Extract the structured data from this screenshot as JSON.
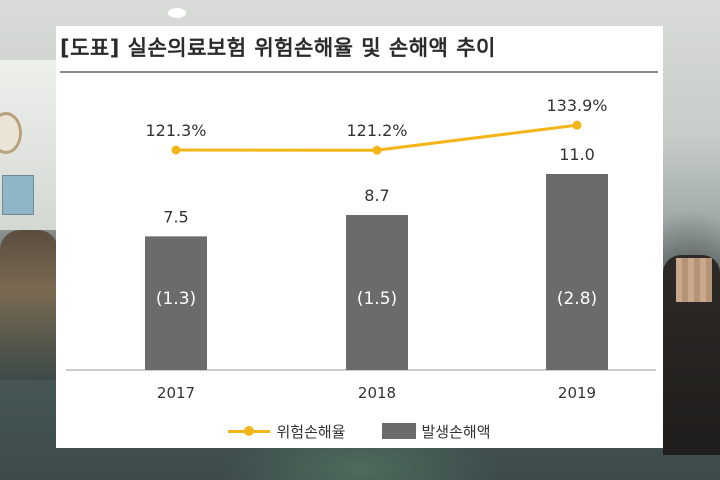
{
  "title": "[도표] 실손의료보험 위험손해율 및 손해액 추이",
  "colors": {
    "line": "#f2b619",
    "bar": "#6b6b6b",
    "axis": "#bcbcbc"
  },
  "legend": {
    "line_label": "위험손해율",
    "bar_label": "발생손해액"
  },
  "chart_data": {
    "type": "bar",
    "categories": [
      "2017",
      "2018",
      "2019"
    ],
    "series": [
      {
        "name": "발생손해액",
        "type": "bar",
        "values": [
          7.5,
          8.7,
          11.0
        ],
        "labels": [
          "7.5",
          "8.7",
          "11.0"
        ],
        "inner_labels": [
          "(1.3)",
          "(1.5)",
          "(2.8)"
        ]
      },
      {
        "name": "위험손해율",
        "type": "line",
        "values": [
          121.3,
          121.2,
          133.9
        ],
        "labels": [
          "121.3%",
          "121.2%",
          "133.9%"
        ]
      }
    ],
    "legend_position": "bottom",
    "grid": false
  }
}
